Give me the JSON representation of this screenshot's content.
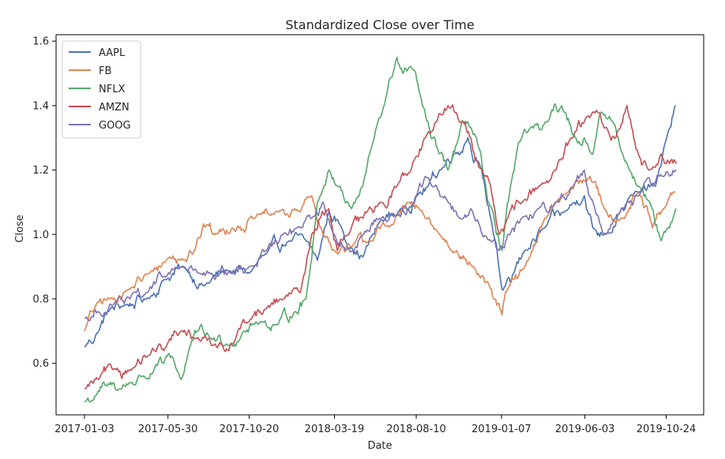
{
  "chart_data": {
    "type": "line",
    "title": "Standardized Close over Time",
    "xlabel": "Date",
    "ylabel": "Close",
    "ylim": [
      0.44,
      1.62
    ],
    "yticks": [
      0.6,
      0.8,
      1.0,
      1.2,
      1.4,
      1.6
    ],
    "ytick_labels": [
      "0.6",
      "0.8",
      "1.0",
      "1.2",
      "1.4",
      "1.6"
    ],
    "x_start": "2017-01-03",
    "x_end": "2019-11-05",
    "xlim_days": [
      -50,
      1090
    ],
    "xtick_labels": [
      "2017-01-03",
      "2017-05-30",
      "2017-10-20",
      "2018-03-19",
      "2018-08-10",
      "2019-01-07",
      "2019-06-03",
      "2019-10-24"
    ],
    "xtick_days": [
      0,
      147,
      290,
      440,
      584,
      734,
      881,
      1024
    ],
    "legend_location": "upper left",
    "series": [
      {
        "name": "AAPL",
        "color": "#4c72b0",
        "x": [
          0,
          25,
          40,
          70,
          110,
          140,
          175,
          210,
          250,
          290,
          320,
          360,
          390,
          410,
          430,
          450,
          470,
          490,
          520,
          560,
          585,
          605,
          625,
          650,
          675,
          695,
          715,
          725,
          735,
          750,
          775,
          810,
          845,
          880,
          895,
          915,
          945,
          975,
          1005,
          1025,
          1040
        ],
        "values": [
          0.65,
          0.7,
          0.76,
          0.78,
          0.8,
          0.86,
          0.9,
          0.84,
          0.89,
          0.88,
          0.94,
          0.98,
          0.98,
          0.92,
          1.07,
          1.03,
          0.96,
          0.93,
          1.04,
          1.08,
          1.12,
          1.15,
          1.2,
          1.25,
          1.3,
          1.22,
          1.05,
          0.97,
          0.83,
          0.85,
          0.95,
          1.02,
          1.07,
          1.12,
          1.02,
          1.0,
          1.08,
          1.13,
          1.15,
          1.3,
          1.4
        ]
      },
      {
        "name": "FB",
        "color": "#dd8452",
        "x": [
          0,
          20,
          45,
          80,
          115,
          150,
          170,
          185,
          200,
          215,
          230,
          260,
          300,
          340,
          380,
          400,
          420,
          440,
          470,
          500,
          540,
          570,
          600,
          625,
          655,
          685,
          705,
          720,
          735,
          745,
          775,
          810,
          850,
          890,
          915,
          945,
          975,
          1000,
          1020,
          1040
        ],
        "values": [
          0.7,
          0.78,
          0.8,
          0.83,
          0.88,
          0.93,
          0.92,
          0.95,
          0.99,
          1.03,
          1.0,
          1.02,
          1.05,
          1.07,
          1.07,
          1.12,
          1.0,
          0.95,
          0.96,
          0.98,
          1.03,
          1.1,
          1.05,
          1.0,
          0.95,
          0.9,
          0.85,
          0.8,
          0.75,
          0.83,
          0.9,
          1.05,
          1.13,
          1.18,
          1.08,
          1.05,
          1.13,
          1.02,
          1.08,
          1.13
        ]
      },
      {
        "name": "NFLX",
        "color": "#55a868",
        "x": [
          0,
          20,
          40,
          60,
          80,
          100,
          120,
          140,
          155,
          170,
          185,
          200,
          220,
          250,
          280,
          310,
          340,
          370,
          390,
          410,
          430,
          450,
          470,
          490,
          510,
          530,
          550,
          560,
          575,
          595,
          610,
          625,
          640,
          655,
          675,
          690,
          710,
          725,
          735,
          750,
          770,
          790,
          815,
          840,
          865,
          880,
          895,
          910,
          930,
          955,
          975,
          995,
          1015,
          1030,
          1042
        ],
        "values": [
          0.48,
          0.5,
          0.53,
          0.52,
          0.54,
          0.56,
          0.57,
          0.6,
          0.62,
          0.55,
          0.65,
          0.7,
          0.68,
          0.66,
          0.7,
          0.73,
          0.72,
          0.76,
          0.8,
          1.1,
          1.2,
          1.15,
          1.08,
          1.15,
          1.3,
          1.42,
          1.55,
          1.5,
          1.52,
          1.4,
          1.3,
          1.25,
          1.2,
          1.28,
          1.35,
          1.3,
          1.1,
          1.0,
          0.95,
          1.15,
          1.3,
          1.33,
          1.35,
          1.4,
          1.3,
          1.3,
          1.25,
          1.38,
          1.35,
          1.22,
          1.15,
          1.1,
          0.98,
          1.02,
          1.08
        ]
      },
      {
        "name": "AMZN",
        "color": "#c44e52",
        "x": [
          0,
          25,
          50,
          80,
          110,
          140,
          170,
          200,
          230,
          260,
          290,
          320,
          350,
          380,
          400,
          415,
          430,
          445,
          465,
          490,
          520,
          550,
          580,
          600,
          620,
          640,
          660,
          680,
          700,
          715,
          730,
          745,
          770,
          800,
          830,
          860,
          880,
          895,
          915,
          935,
          955,
          975,
          995,
          1015,
          1030,
          1042
        ],
        "values": [
          0.52,
          0.55,
          0.58,
          0.58,
          0.62,
          0.64,
          0.7,
          0.68,
          0.66,
          0.66,
          0.73,
          0.77,
          0.8,
          0.82,
          1.0,
          1.05,
          1.08,
          0.95,
          1.0,
          1.05,
          1.1,
          1.15,
          1.23,
          1.3,
          1.35,
          1.4,
          1.35,
          1.3,
          1.2,
          1.15,
          1.0,
          1.05,
          1.1,
          1.15,
          1.2,
          1.3,
          1.35,
          1.38,
          1.33,
          1.3,
          1.4,
          1.25,
          1.2,
          1.25,
          1.22,
          1.22
        ]
      },
      {
        "name": "GOOG",
        "color": "#8172b2",
        "x": [
          0,
          25,
          50,
          80,
          110,
          140,
          170,
          200,
          230,
          260,
          290,
          320,
          350,
          380,
          400,
          420,
          440,
          460,
          490,
          520,
          550,
          580,
          600,
          620,
          640,
          660,
          680,
          700,
          715,
          730,
          745,
          770,
          800,
          830,
          860,
          880,
          895,
          915,
          935,
          955,
          975,
          1000,
          1020,
          1042
        ],
        "values": [
          0.74,
          0.76,
          0.78,
          0.8,
          0.82,
          0.87,
          0.9,
          0.88,
          0.86,
          0.88,
          0.9,
          0.95,
          1.0,
          1.02,
          1.05,
          1.1,
          1.0,
          0.95,
          1.0,
          1.05,
          1.06,
          1.1,
          1.18,
          1.15,
          1.1,
          1.05,
          1.08,
          1.0,
          0.98,
          0.95,
          1.0,
          1.05,
          1.08,
          1.1,
          1.15,
          1.2,
          1.1,
          1.0,
          1.05,
          1.1,
          1.12,
          1.15,
          1.18,
          1.2
        ]
      }
    ]
  }
}
